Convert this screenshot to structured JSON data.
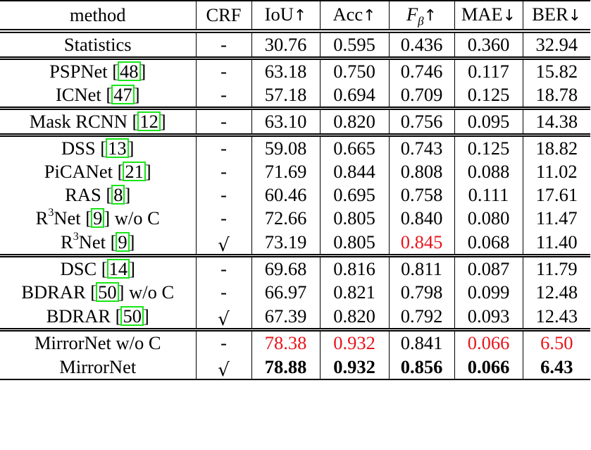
{
  "table": {
    "headers": {
      "method": "method",
      "crf": "CRF",
      "iou": "IoU",
      "iou_arrow": "↑",
      "acc": "Acc",
      "acc_arrow": "↑",
      "fbeta_main": "F",
      "fbeta_sub": "β",
      "fbeta_arrow": "↑",
      "mae": "MAE",
      "mae_arrow": "↓",
      "ber": "BER",
      "ber_arrow": "↓"
    },
    "groups": [
      {
        "rows": [
          {
            "name": "Statistics",
            "cite": "",
            "suffix": "",
            "crf": "-",
            "iou": "30.76",
            "acc": "0.595",
            "fbeta": "0.436",
            "mae": "0.360",
            "ber": "32.94"
          }
        ]
      },
      {
        "rows": [
          {
            "name": "PSPNet",
            "cite": "48",
            "suffix": "",
            "crf": "-",
            "iou": "63.18",
            "acc": "0.750",
            "fbeta": "0.746",
            "mae": "0.117",
            "ber": "15.82"
          },
          {
            "name": "ICNet",
            "cite": "47",
            "suffix": "",
            "crf": "-",
            "iou": "57.18",
            "acc": "0.694",
            "fbeta": "0.709",
            "mae": "0.125",
            "ber": "18.78"
          }
        ]
      },
      {
        "rows": [
          {
            "name": "Mask RCNN",
            "cite": "12",
            "suffix": "",
            "crf": "-",
            "iou": "63.10",
            "acc": "0.820",
            "fbeta": "0.756",
            "mae": "0.095",
            "ber": "14.38"
          }
        ]
      },
      {
        "rows": [
          {
            "name": "DSS",
            "cite": "13",
            "suffix": "",
            "crf": "-",
            "iou": "59.08",
            "acc": "0.665",
            "fbeta": "0.743",
            "mae": "0.125",
            "ber": "18.82"
          },
          {
            "name": "PiCANet",
            "cite": "21",
            "suffix": "",
            "crf": "-",
            "iou": "71.69",
            "acc": "0.844",
            "fbeta": "0.808",
            "mae": "0.088",
            "ber": "11.02"
          },
          {
            "name": "RAS",
            "cite": "8",
            "suffix": "",
            "crf": "-",
            "iou": "60.46",
            "acc": "0.695",
            "fbeta": "0.758",
            "mae": "0.111",
            "ber": "17.61"
          },
          {
            "name": "R",
            "sup": "3",
            "name_rest": "Net",
            "cite": "9",
            "suffix": " w/o C",
            "crf": "-",
            "iou": "72.66",
            "acc": "0.805",
            "fbeta": "0.840",
            "mae": "0.080",
            "ber": "11.47"
          },
          {
            "name": "R",
            "sup": "3",
            "name_rest": "Net",
            "cite": "9",
            "suffix": "",
            "crf": "√",
            "iou": "73.19",
            "acc": "0.805",
            "fbeta": "0.845",
            "mae": "0.068",
            "ber": "11.40"
          }
        ]
      },
      {
        "rows": [
          {
            "name": "DSC",
            "cite": "14",
            "suffix": "",
            "crf": "-",
            "iou": "69.68",
            "acc": "0.816",
            "fbeta": "0.811",
            "mae": "0.087",
            "ber": "11.79"
          },
          {
            "name": "BDRAR",
            "cite": "50",
            "suffix": " w/o C",
            "crf": "-",
            "iou": "66.97",
            "acc": "0.821",
            "fbeta": "0.798",
            "mae": "0.099",
            "ber": "12.48"
          },
          {
            "name": "BDRAR",
            "cite": "50",
            "suffix": "",
            "crf": "√",
            "iou": "67.39",
            "acc": "0.820",
            "fbeta": "0.792",
            "mae": "0.093",
            "ber": "12.43"
          }
        ]
      },
      {
        "rows": [
          {
            "name": "MirrorNet w/o C",
            "cite": "",
            "suffix": "",
            "crf": "-",
            "iou": "78.38",
            "acc": "0.932",
            "fbeta": "0.841",
            "mae": "0.066",
            "ber": "6.50"
          },
          {
            "name": "MirrorNet",
            "cite": "",
            "suffix": "",
            "crf": "√",
            "iou": "78.88",
            "acc": "0.932",
            "fbeta": "0.856",
            "mae": "0.066",
            "ber": "6.43"
          }
        ]
      }
    ],
    "highlight_colors": {
      "second_best": "#e8141b",
      "citation_box": "#19e619"
    }
  }
}
